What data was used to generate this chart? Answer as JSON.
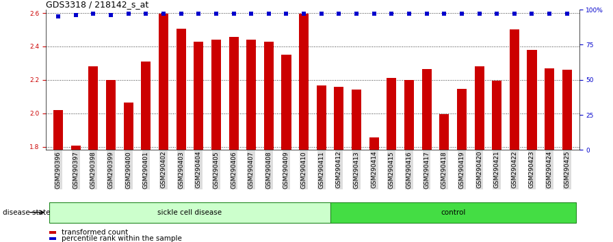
{
  "title": "GDS3318 / 218142_s_at",
  "samples": [
    "GSM290396",
    "GSM290397",
    "GSM290398",
    "GSM290399",
    "GSM290400",
    "GSM290401",
    "GSM290402",
    "GSM290403",
    "GSM290404",
    "GSM290405",
    "GSM290406",
    "GSM290407",
    "GSM290408",
    "GSM290409",
    "GSM290410",
    "GSM290411",
    "GSM290412",
    "GSM290413",
    "GSM290414",
    "GSM290415",
    "GSM290416",
    "GSM290417",
    "GSM290418",
    "GSM290419",
    "GSM290420",
    "GSM290421",
    "GSM290422",
    "GSM290423",
    "GSM290424",
    "GSM290425"
  ],
  "bar_values": [
    2.02,
    1.805,
    2.28,
    2.2,
    2.065,
    2.31,
    2.595,
    2.505,
    2.43,
    2.44,
    2.455,
    2.44,
    2.43,
    2.35,
    2.595,
    2.165,
    2.16,
    2.14,
    1.855,
    2.21,
    2.2,
    2.265,
    1.995,
    2.145,
    2.28,
    2.195,
    2.5,
    2.38,
    2.27,
    2.26
  ],
  "percentile_values": [
    95,
    96,
    97,
    96,
    97,
    97,
    97,
    97,
    97,
    97,
    97,
    97,
    97,
    97,
    97,
    97,
    97,
    97,
    97,
    97,
    97,
    97,
    97,
    97,
    97,
    97,
    97,
    97,
    97,
    97
  ],
  "bar_color": "#cc0000",
  "percentile_color": "#0000cc",
  "ylim_left": [
    1.78,
    2.62
  ],
  "ylim_right": [
    0,
    100
  ],
  "yticks_left": [
    1.8,
    2.0,
    2.2,
    2.4,
    2.6
  ],
  "yticks_right": [
    0,
    25,
    50,
    75,
    100
  ],
  "sickle_cell_count": 16,
  "total_count": 30,
  "group1_label": "sickle cell disease",
  "group2_label": "control",
  "group1_color": "#ccffcc",
  "group2_color": "#44dd44",
  "disease_state_label": "disease state",
  "legend_bar_label": "transformed count",
  "legend_pct_label": "percentile rank within the sample",
  "bar_width": 0.55,
  "title_fontsize": 9,
  "tick_fontsize": 6.5,
  "label_fontsize": 7.5
}
